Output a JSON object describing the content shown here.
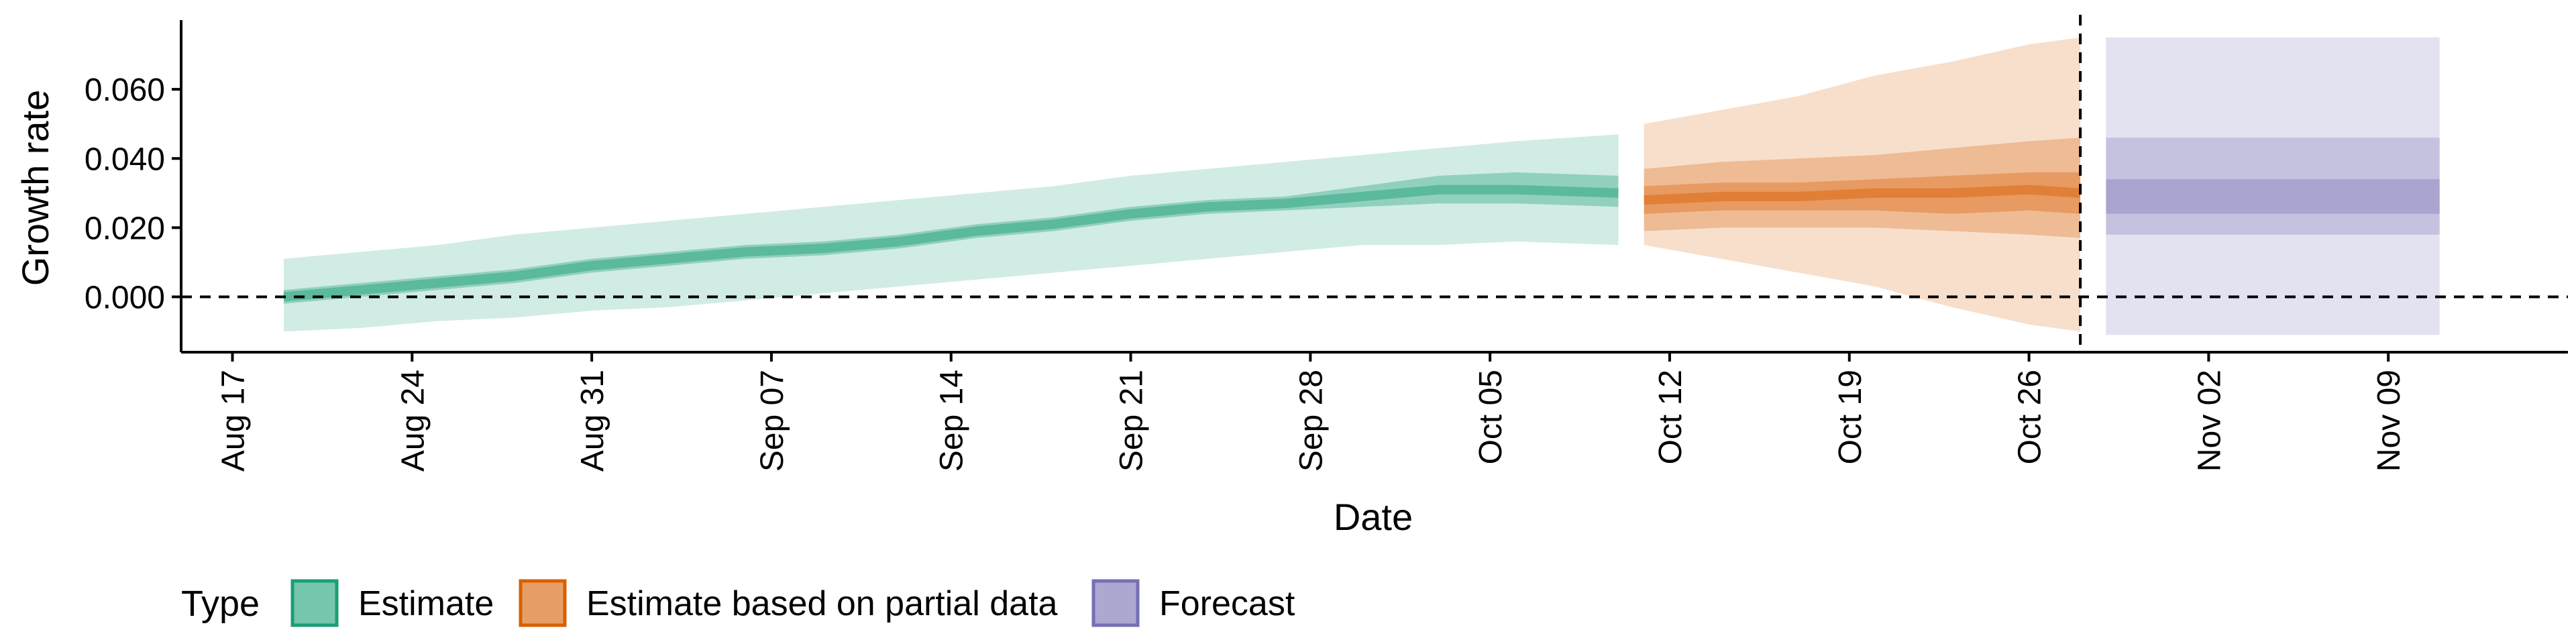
{
  "chart_data": {
    "type": "area",
    "xlabel": "Date",
    "ylabel": "Growth rate",
    "ylim": [
      -0.016,
      0.08
    ],
    "y_ticks": [
      0.0,
      0.02,
      0.04,
      0.06
    ],
    "y_tick_labels": [
      "0.000",
      "0.020",
      "0.040",
      "0.060"
    ],
    "x_ticks": [
      "2020-08-17",
      "2020-08-24",
      "2020-08-31",
      "2020-09-07",
      "2020-09-14",
      "2020-09-21",
      "2020-09-28",
      "2020-10-05",
      "2020-10-12",
      "2020-10-19",
      "2020-10-26",
      "2020-11-02",
      "2020-11-09"
    ],
    "x_tick_labels": [
      "Aug 17",
      "Aug 24",
      "Aug 31",
      "Sep 07",
      "Sep 14",
      "Sep 21",
      "Sep 28",
      "Oct 05",
      "Oct 12",
      "Oct 19",
      "Oct 26",
      "Nov 02",
      "Nov 09"
    ],
    "xlim": [
      "2020-08-15",
      "2020-11-16"
    ],
    "hline_y": 0,
    "vline_x": "2020-10-28",
    "grid": false,
    "legend": {
      "title": "Type",
      "position": "bottom-left",
      "entries": [
        {
          "label": "Estimate",
          "color": "#1b9e77"
        },
        {
          "label": "Estimate based on partial data",
          "color": "#d95f02"
        },
        {
          "label": "Forecast",
          "color": "#7570b3"
        }
      ]
    },
    "series": [
      {
        "name": "Estimate",
        "color": "#1b9e77",
        "x": [
          "2020-08-19",
          "2020-08-22",
          "2020-08-25",
          "2020-08-28",
          "2020-08-31",
          "2020-09-03",
          "2020-09-06",
          "2020-09-09",
          "2020-09-12",
          "2020-09-15",
          "2020-09-18",
          "2020-09-21",
          "2020-09-24",
          "2020-09-27",
          "2020-09-30",
          "2020-10-03",
          "2020-10-06",
          "2020-10-10"
        ],
        "median": [
          0.0,
          0.002,
          0.004,
          0.006,
          0.009,
          0.011,
          0.013,
          0.014,
          0.016,
          0.019,
          0.021,
          0.024,
          0.026,
          0.027,
          0.029,
          0.031,
          0.031,
          0.03
        ],
        "lower_20": [
          -0.002,
          0.0,
          0.002,
          0.004,
          0.007,
          0.009,
          0.011,
          0.012,
          0.014,
          0.017,
          0.019,
          0.022,
          0.024,
          0.025,
          0.026,
          0.027,
          0.027,
          0.026
        ],
        "upper_20": [
          0.002,
          0.004,
          0.006,
          0.008,
          0.011,
          0.013,
          0.015,
          0.016,
          0.018,
          0.021,
          0.023,
          0.026,
          0.028,
          0.029,
          0.032,
          0.035,
          0.036,
          0.035
        ],
        "lower_90": [
          -0.01,
          -0.009,
          -0.007,
          -0.006,
          -0.004,
          -0.003,
          -0.001,
          0.001,
          0.003,
          0.005,
          0.007,
          0.009,
          0.011,
          0.013,
          0.015,
          0.015,
          0.016,
          0.015
        ],
        "upper_90": [
          0.011,
          0.013,
          0.015,
          0.018,
          0.02,
          0.022,
          0.024,
          0.026,
          0.028,
          0.03,
          0.032,
          0.035,
          0.037,
          0.039,
          0.041,
          0.043,
          0.045,
          0.047
        ]
      },
      {
        "name": "Estimate based on partial data",
        "color": "#d95f02",
        "x": [
          "2020-10-11",
          "2020-10-14",
          "2020-10-17",
          "2020-10-20",
          "2020-10-23",
          "2020-10-26",
          "2020-10-28"
        ],
        "median": [
          0.028,
          0.029,
          0.029,
          0.03,
          0.03,
          0.031,
          0.03
        ],
        "lower_20": [
          0.024,
          0.025,
          0.025,
          0.025,
          0.024,
          0.025,
          0.024
        ],
        "upper_20": [
          0.032,
          0.033,
          0.033,
          0.034,
          0.035,
          0.036,
          0.036
        ],
        "lower_50": [
          0.019,
          0.02,
          0.02,
          0.02,
          0.019,
          0.018,
          0.017
        ],
        "upper_50": [
          0.037,
          0.039,
          0.04,
          0.041,
          0.043,
          0.045,
          0.046
        ],
        "lower_90": [
          0.015,
          0.011,
          0.007,
          0.003,
          -0.003,
          -0.008,
          -0.01
        ],
        "upper_90": [
          0.05,
          0.054,
          0.058,
          0.064,
          0.068,
          0.073,
          0.075
        ]
      },
      {
        "name": "Forecast",
        "color": "#7570b3",
        "x": [
          "2020-10-29",
          "2020-11-11"
        ],
        "lower_20": [
          0.024,
          0.024
        ],
        "upper_20": [
          0.034,
          0.034
        ],
        "lower_50": [
          0.018,
          0.018
        ],
        "upper_50": [
          0.046,
          0.046
        ],
        "lower_90": [
          -0.011,
          -0.011
        ],
        "upper_90": [
          0.075,
          0.075
        ]
      }
    ]
  }
}
